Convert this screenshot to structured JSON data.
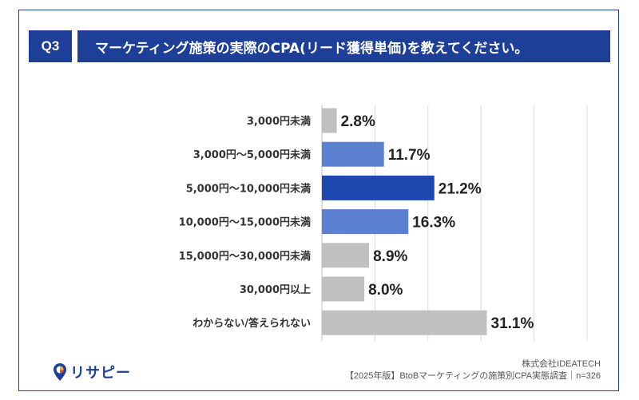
{
  "header": {
    "badge": "Q3",
    "question": "マーケティング施策の実際のCPA(リード獲得単価)を教えてください。"
  },
  "colors": {
    "brand_navy": "#1e3f98",
    "bar_gray": "#c0c0c0",
    "bar_mid_blue": "#5b80cf",
    "bar_dark_blue": "#1e48b0",
    "frame": "#1f3f99"
  },
  "chart_data": {
    "type": "bar",
    "orientation": "horizontal",
    "categories": [
      "3,000円未満",
      "3,000円～5,000円未満",
      "5,000円～10,000円未満",
      "10,000円～15,000円未満",
      "15,000円～30,000円未満",
      "30,000円以上",
      "わからない/答えられない"
    ],
    "values": [
      2.8,
      11.7,
      21.2,
      16.3,
      8.9,
      8.0,
      31.1
    ],
    "value_labels": [
      "2.8%",
      "11.7%",
      "21.2%",
      "16.3%",
      "8.9%",
      "8.0%",
      "31.1%"
    ],
    "bar_colors": [
      "#c0c0c0",
      "#5b80cf",
      "#1e48b0",
      "#5b80cf",
      "#c0c0c0",
      "#c0c0c0",
      "#c0c0c0"
    ],
    "xlim": [
      0,
      50
    ],
    "gridlines": [
      0,
      10,
      20,
      30,
      40,
      50
    ],
    "grid": true,
    "title": "",
    "xlabel": "",
    "ylabel": ""
  },
  "footer": {
    "company": "株式会社IDEATECH",
    "survey": "【2025年版】BtoBマーケティングの施策別CPA実態調査｜n=326",
    "logo_text": "リサピー"
  }
}
